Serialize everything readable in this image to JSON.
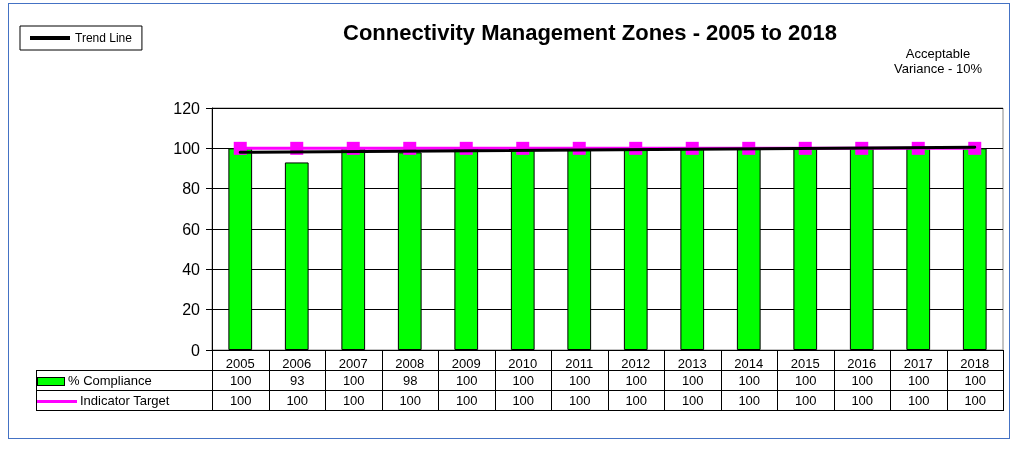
{
  "chart_data": {
    "type": "bar",
    "title": "Connectivity Management Zones - 2005 to 2018",
    "annotations": [
      "Acceptable Variance - 10%"
    ],
    "categories": [
      "2005",
      "2006",
      "2007",
      "2008",
      "2009",
      "2010",
      "2011",
      "2012",
      "2013",
      "2014",
      "2015",
      "2016",
      "2017",
      "2018"
    ],
    "series": [
      {
        "name": "% Compliance",
        "color": "#00ff00",
        "values": [
          100,
          93,
          100,
          98,
          100,
          100,
          100,
          100,
          100,
          100,
          100,
          100,
          100,
          100
        ],
        "value_labels": [
          "100",
          "93",
          "100",
          "98",
          "100",
          "100",
          "100",
          "100",
          "100",
          "100",
          "100",
          "100",
          "100",
          "100"
        ]
      },
      {
        "name": "Indicator Target",
        "type": "line",
        "color": "#ff00ff",
        "marker": "square",
        "values": [
          100,
          100,
          100,
          100,
          100,
          100,
          100,
          100,
          100,
          100,
          100,
          100,
          100,
          100
        ],
        "value_labels": [
          "100",
          "100",
          "100",
          "100",
          "100",
          "100",
          "100",
          "100",
          "100",
          "100",
          "100",
          "100",
          "100",
          "100"
        ]
      },
      {
        "name": "Trend Line",
        "type": "line",
        "color": "#000000",
        "marker": "none",
        "values": [
          98,
          null,
          null,
          null,
          null,
          null,
          null,
          null,
          null,
          null,
          null,
          null,
          null,
          100.5
        ]
      }
    ],
    "ylim": [
      0,
      120
    ],
    "yticks": [
      0,
      20,
      40,
      60,
      80,
      100,
      120
    ],
    "grid": "y",
    "legend": "top left",
    "line_style": "solid"
  }
}
